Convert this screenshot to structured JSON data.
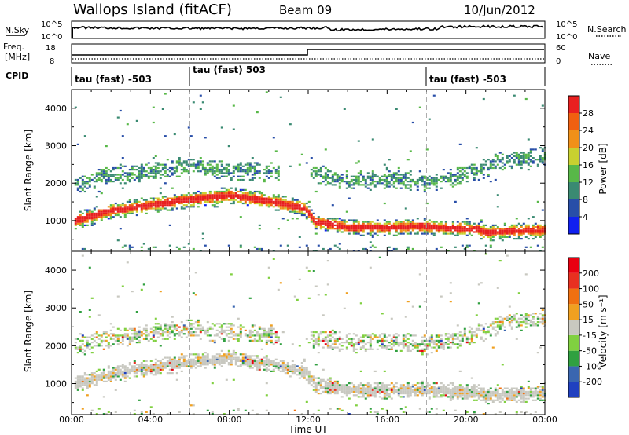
{
  "header": {
    "station": "Wallops Island (fitACF)",
    "beam": "Beam 09",
    "date": "10/Jun/2012"
  },
  "panels": {
    "nsky_label": "N.Sky",
    "nsearch_label": "N.Search",
    "nsky_ticks": [
      "10^5",
      "10^0"
    ],
    "freq_label_1": "Freq.",
    "freq_label_2": "[MHz]",
    "freq_ticks": [
      "18",
      "8"
    ],
    "nave_label": "Nave",
    "nave_ticks": [
      "60",
      "0"
    ],
    "cpid_label": "CPID",
    "cpid_segments": [
      {
        "label": "tau (fast) -503",
        "start_hour": 0
      },
      {
        "label": "tau (fast) 503",
        "start_hour": 6
      },
      {
        "label": "tau (fast) -503",
        "start_hour": 18
      }
    ]
  },
  "chart_data": [
    {
      "type": "heatmap",
      "title": "",
      "xlabel": "Time UT",
      "ylabel": "Slant Range [km]",
      "xlim_hours": [
        0,
        24
      ],
      "ylim": [
        180,
        4500
      ],
      "x_ticks": [
        "00:00",
        "04:00",
        "08:00",
        "12:00",
        "16:00",
        "20:00",
        "00:00"
      ],
      "y_ticks": [
        1000,
        2000,
        3000,
        4000
      ],
      "colorbar": {
        "label": "Power [dB]",
        "ticks": [
          "4",
          "8",
          "12",
          "16",
          "20",
          "24",
          "28"
        ],
        "colors": [
          "#1020f0",
          "#284ea8",
          "#3a8a72",
          "#58b848",
          "#c8d030",
          "#f09018",
          "#f06010",
          "#e82020"
        ]
      },
      "bands": [
        {
          "name": "main",
          "points": [
            [
              0,
              950
            ],
            [
              2,
              1250
            ],
            [
              4,
              1400
            ],
            [
              6,
              1550
            ],
            [
              8,
              1650
            ],
            [
              10,
              1500
            ],
            [
              11.8,
              1300
            ],
            [
              12.3,
              950
            ],
            [
              14,
              800
            ],
            [
              16,
              800
            ],
            [
              17.8,
              820
            ],
            [
              19,
              780
            ],
            [
              20.5,
              750
            ],
            [
              21,
              650
            ],
            [
              22,
              700
            ],
            [
              24,
              720
            ]
          ]
        },
        {
          "name": "upper",
          "points": [
            [
              0,
              1900
            ],
            [
              2,
              2200
            ],
            [
              4,
              2300
            ],
            [
              6,
              2450
            ],
            [
              7,
              2350
            ],
            [
              12.5,
              2200
            ],
            [
              14,
              2050
            ],
            [
              16,
              2100
            ],
            [
              18,
              2000
            ],
            [
              20,
              2200
            ],
            [
              22,
              2600
            ],
            [
              24,
              2700
            ]
          ]
        }
      ]
    },
    {
      "type": "heatmap",
      "title": "",
      "xlabel": "Time UT",
      "ylabel": "Slant Range [km]",
      "xlim_hours": [
        0,
        24
      ],
      "ylim": [
        180,
        4500
      ],
      "x_ticks": [
        "00:00",
        "04:00",
        "08:00",
        "12:00",
        "16:00",
        "20:00",
        "00:00"
      ],
      "y_ticks": [
        1000,
        2000,
        3000,
        4000
      ],
      "colorbar": {
        "label": "Velocity [m s⁻¹]",
        "ticks": [
          "200",
          "100",
          "50",
          "15",
          "-15",
          "-50",
          "-100",
          "-200"
        ],
        "colors": [
          "#2040c0",
          "#3a66b0",
          "#30a040",
          "#80d040",
          "#c8c8c0",
          "#f0a020",
          "#f07010",
          "#e83020",
          "#e80010"
        ]
      }
    }
  ]
}
